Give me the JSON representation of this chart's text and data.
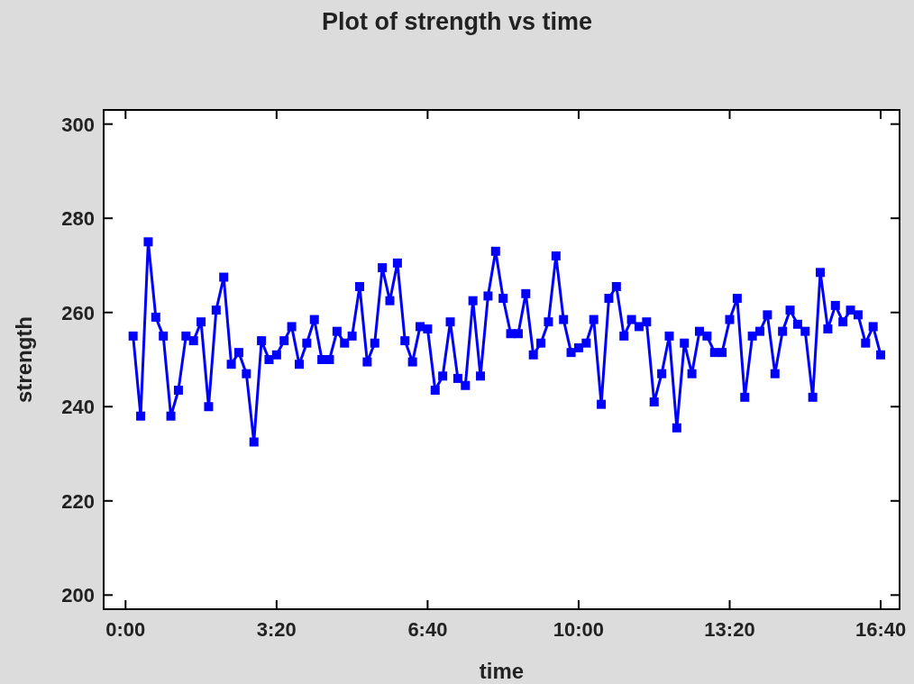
{
  "chart_data": {
    "type": "line",
    "title": "Plot of strength vs time",
    "xlabel": "time",
    "ylabel": "strength",
    "x": [
      10,
      20,
      30,
      40,
      50,
      60,
      70,
      80,
      90,
      100,
      110,
      120,
      130,
      140,
      150,
      160,
      170,
      180,
      190,
      200,
      210,
      220,
      230,
      240,
      250,
      260,
      270,
      280,
      290,
      300,
      310,
      320,
      330,
      340,
      350,
      360,
      370,
      380,
      390,
      400,
      410,
      420,
      430,
      440,
      450,
      460,
      470,
      480,
      490,
      500,
      510,
      520,
      530,
      540,
      550,
      560,
      570,
      580,
      590,
      600,
      610,
      620,
      630,
      640,
      650,
      660,
      670,
      680,
      690,
      700,
      710,
      720,
      730,
      740,
      750,
      760,
      770,
      780,
      790,
      800,
      810,
      820,
      830,
      840,
      850,
      860,
      870,
      880,
      890,
      900,
      910,
      920,
      930,
      940,
      950,
      960,
      970,
      980,
      990,
      1000
    ],
    "series": [
      {
        "color": "#0000ff",
        "values": [
          255,
          238,
          275,
          259,
          255,
          238,
          243.5,
          255,
          254,
          258,
          240,
          260.5,
          267.5,
          249,
          251.5,
          247,
          232.5,
          254,
          250,
          251,
          254,
          257,
          249,
          253.5,
          258.5,
          250,
          250,
          256,
          253.5,
          255,
          265.5,
          249.5,
          253.5,
          269.5,
          262.5,
          270.5,
          254,
          249.5,
          257,
          256.5,
          243.5,
          246.5,
          258,
          246,
          244.5,
          262.5,
          246.5,
          263.5,
          273,
          263,
          255.5,
          255.5,
          264,
          251,
          253.5,
          258,
          272,
          258.5,
          251.5,
          252.5,
          253.5,
          258.5,
          240.5,
          263,
          265.5,
          255,
          258.5,
          257,
          258,
          241,
          247,
          255,
          235.5,
          253.5,
          247,
          256,
          255,
          251.5,
          251.5,
          258.5,
          263,
          242,
          255,
          256,
          259.5,
          247,
          256,
          260.5,
          257.5,
          256,
          242,
          268.5,
          256.5,
          261.5,
          258,
          260.5,
          259.5,
          253.5,
          257,
          251
        ]
      }
    ],
    "xlim": [
      -29,
      1025
    ],
    "ylim": [
      197,
      303
    ],
    "xticks": [
      {
        "value": 0,
        "label": "0:00"
      },
      {
        "value": 200,
        "label": "3:20"
      },
      {
        "value": 400,
        "label": "6:40"
      },
      {
        "value": 600,
        "label": "10:00"
      },
      {
        "value": 800,
        "label": "13:20"
      },
      {
        "value": 1000,
        "label": "16:40"
      }
    ],
    "yticks": [
      200,
      220,
      240,
      260,
      280,
      300
    ],
    "marker": "square",
    "line_style": "solid",
    "grid": false
  }
}
